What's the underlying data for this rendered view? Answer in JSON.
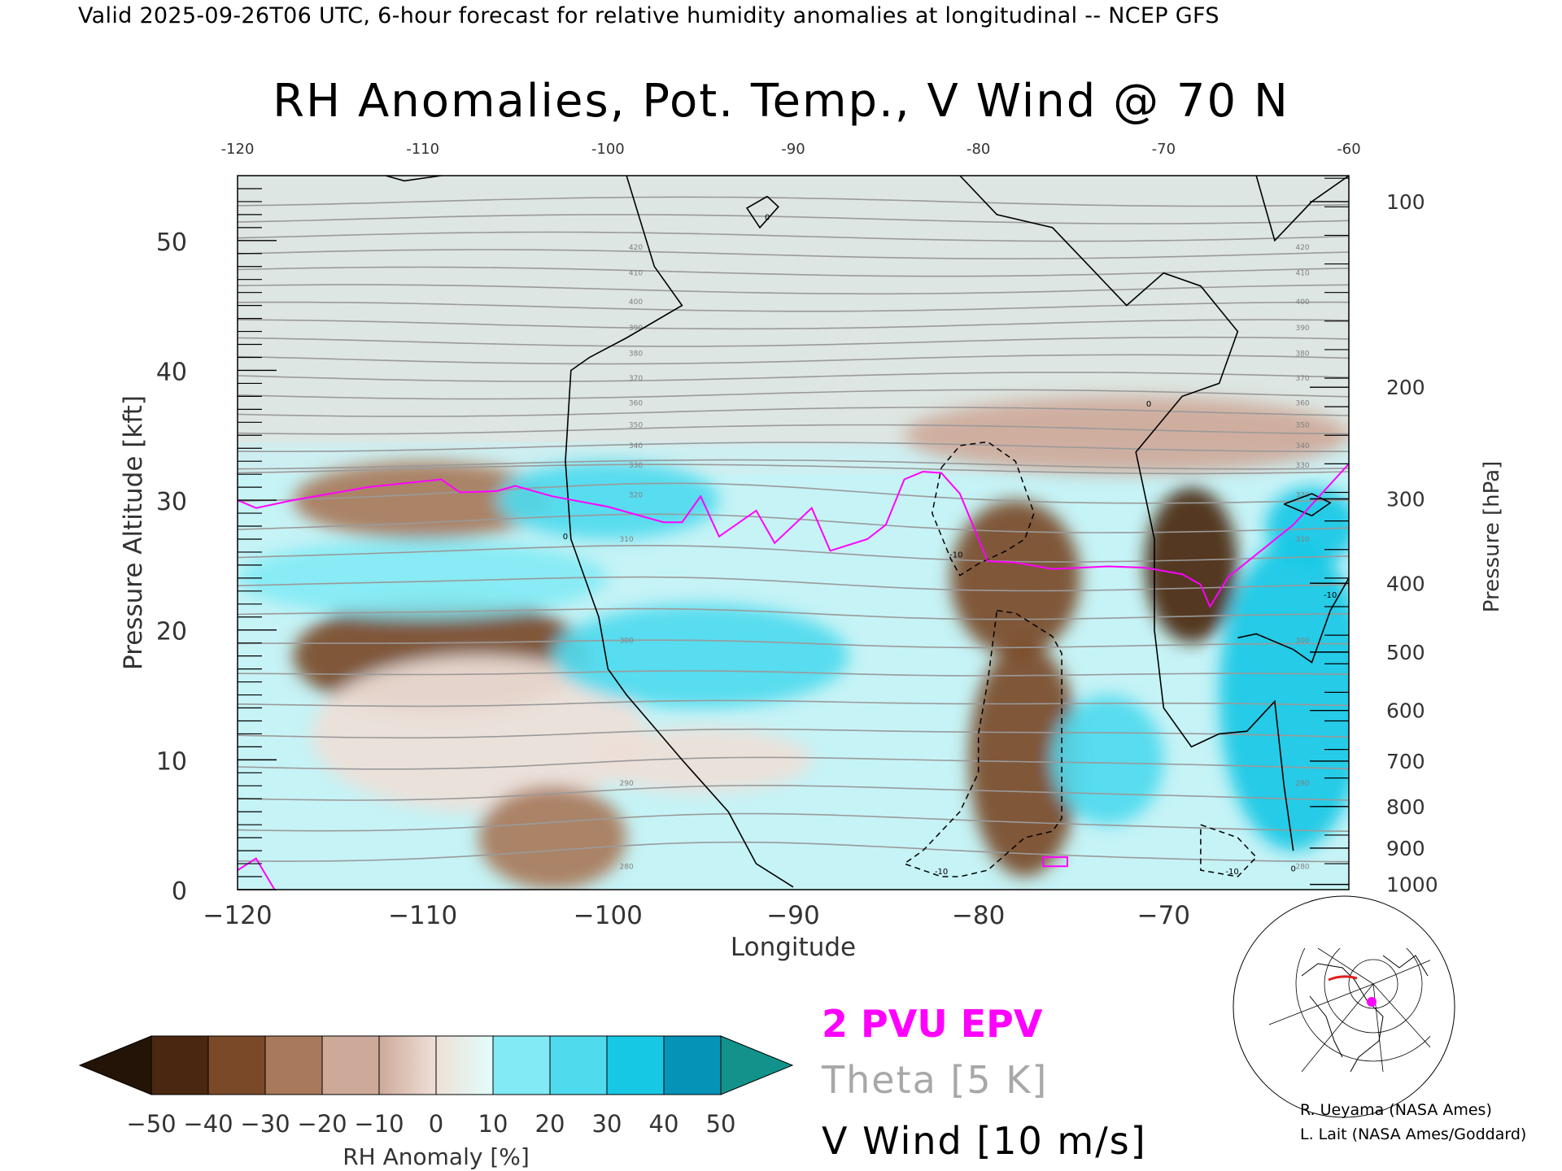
{
  "header": {
    "valid_line": "Valid 2025-09-26T06 UTC, 6-hour forecast for relative humidity anomalies at longitudinal -- NCEP GFS",
    "title": "RH Anomalies, Pot. Temp., V Wind @ 70 N"
  },
  "chart_data": {
    "type": "heatmap",
    "title": "RH Anomalies, Pot. Temp., V Wind @ 70 N",
    "xlabel": "Longitude",
    "ylabel": "Pressure Altitude [kft]",
    "y2label": "Pressure [hPa]",
    "xlim": [
      -120,
      -60
    ],
    "ylim": [
      0,
      55
    ],
    "x_ticks": [
      -120,
      -110,
      -100,
      -90,
      -80,
      -70,
      -60
    ],
    "y_ticks": [
      0,
      10,
      20,
      30,
      40,
      50
    ],
    "top_ticks": [
      "-120",
      "-110",
      "-100",
      "-90",
      "-80",
      "-70",
      "-60"
    ],
    "pressure_ticks": [
      {
        "label": "100",
        "kft": 53
      },
      {
        "label": "200",
        "kft": 38.7
      },
      {
        "label": "300",
        "kft": 30.1
      },
      {
        "label": "400",
        "kft": 23.6
      },
      {
        "label": "500",
        "kft": 18.3
      },
      {
        "label": "600",
        "kft": 13.8
      },
      {
        "label": "700",
        "kft": 9.9
      },
      {
        "label": "800",
        "kft": 6.4
      },
      {
        "label": "900",
        "kft": 3.2
      },
      {
        "label": "1000",
        "kft": 0.4
      }
    ],
    "theta_labels": [
      "420",
      "410",
      "400",
      "390",
      "380",
      "370",
      "360",
      "350",
      "340",
      "330",
      "320",
      "310",
      "300",
      "290",
      "280"
    ],
    "rh_anomaly_blobs": [
      {
        "lon": -110,
        "kft": 30,
        "value": -30,
        "rx": 7,
        "ry": 3
      },
      {
        "lon": -109,
        "kft": 18,
        "value": -40,
        "rx": 8,
        "ry": 4.5
      },
      {
        "lon": -107,
        "kft": 12,
        "value": -15,
        "rx": 9,
        "ry": 6
      },
      {
        "lon": -103,
        "kft": 4,
        "value": -30,
        "rx": 4,
        "ry": 4
      },
      {
        "lon": -95,
        "kft": 10,
        "value": -15,
        "rx": 6,
        "ry": 2.5
      },
      {
        "lon": -78,
        "kft": 24,
        "value": -45,
        "rx": 3.5,
        "ry": 6
      },
      {
        "lon": -77.5,
        "kft": 10,
        "value": -40,
        "rx": 3,
        "ry": 9
      },
      {
        "lon": -72,
        "kft": 35,
        "value": -20,
        "rx": 12,
        "ry": 3
      },
      {
        "lon": -68.5,
        "kft": 25,
        "value": -50,
        "rx": 2.5,
        "ry": 6
      },
      {
        "lon": -110,
        "kft": 24,
        "value": 20,
        "rx": 10,
        "ry": 3
      },
      {
        "lon": -95,
        "kft": 18,
        "value": 30,
        "rx": 8,
        "ry": 4
      },
      {
        "lon": -100,
        "kft": 30,
        "value": 30,
        "rx": 6,
        "ry": 3
      },
      {
        "lon": -63,
        "kft": 15,
        "value": 35,
        "rx": 4,
        "ry": 12
      },
      {
        "lon": -62,
        "kft": 28,
        "value": 40,
        "rx": 2.5,
        "ry": 3
      },
      {
        "lon": -73,
        "kft": 10,
        "value": 25,
        "rx": 3,
        "ry": 5
      }
    ],
    "pv_2pvu_line": [
      [
        -120,
        30
      ],
      [
        -119,
        29.4
      ],
      [
        -117,
        30
      ],
      [
        -113,
        31
      ],
      [
        -109,
        31.6
      ],
      [
        -108,
        30.6
      ],
      [
        -106,
        30.7
      ],
      [
        -105,
        31.1
      ],
      [
        -103,
        30.3
      ],
      [
        -100,
        29.5
      ],
      [
        -97,
        28.3
      ],
      [
        -96,
        28.3
      ],
      [
        -95,
        30.3
      ],
      [
        -94,
        27.2
      ],
      [
        -92,
        29.2
      ],
      [
        -91,
        26.7
      ],
      [
        -89,
        29.4
      ],
      [
        -88,
        26.1
      ],
      [
        -86,
        27
      ],
      [
        -85,
        28.1
      ],
      [
        -84,
        31.6
      ],
      [
        -83,
        32.2
      ],
      [
        -82,
        32.1
      ],
      [
        -81,
        30.5
      ],
      [
        -79.5,
        25.3
      ],
      [
        -78,
        25.2
      ],
      [
        -76,
        24.7
      ],
      [
        -73,
        24.9
      ],
      [
        -71,
        24.8
      ],
      [
        -69,
        24.3
      ],
      [
        -68,
        23.5
      ],
      [
        -67.5,
        21.8
      ],
      [
        -66.5,
        24.1
      ],
      [
        -63,
        28.1
      ],
      [
        -60,
        32.8
      ]
    ],
    "pv_small_loop": [
      [
        -120,
        1.5
      ],
      [
        -119,
        2.4
      ],
      [
        -118,
        0
      ]
    ],
    "vwind_zero_lines": [
      [
        [
          -99,
          55
        ],
        [
          -97.5,
          48
        ],
        [
          -96,
          45
        ],
        [
          -99,
          42.5
        ],
        [
          -101,
          41
        ],
        [
          -102,
          40
        ],
        [
          -102.3,
          33
        ],
        [
          -102,
          27
        ],
        [
          -100.5,
          21
        ],
        [
          -100,
          17
        ],
        [
          -99,
          15
        ],
        [
          -96,
          10
        ],
        [
          -93.5,
          6
        ],
        [
          -92,
          2
        ],
        [
          -90,
          0.2
        ]
      ],
      [
        [
          -81,
          55
        ],
        [
          -79,
          52
        ],
        [
          -76,
          51
        ],
        [
          -74,
          48
        ],
        [
          -72,
          45
        ],
        [
          -70,
          47.5
        ],
        [
          -68,
          46.5
        ],
        [
          -66,
          43
        ],
        [
          -67,
          39
        ],
        [
          -69,
          38
        ],
        [
          -71.5,
          33.7
        ],
        [
          -70.5,
          27
        ],
        [
          -70.5,
          20
        ],
        [
          -70,
          14
        ],
        [
          -68.5,
          11
        ],
        [
          -67,
          12
        ],
        [
          -65.5,
          12.2
        ],
        [
          -64,
          14.5
        ],
        [
          -63.5,
          8
        ],
        [
          -63,
          3
        ]
      ],
      [
        [
          -65,
          55
        ],
        [
          -64,
          50
        ],
        [
          -62,
          53
        ],
        [
          -60,
          55
        ]
      ],
      [
        [
          -63.5,
          29.7
        ],
        [
          -62,
          30.5
        ],
        [
          -61,
          29.8
        ],
        [
          -62,
          28.8
        ],
        [
          -63.5,
          29.7
        ]
      ],
      [
        [
          -60,
          24
        ],
        [
          -61,
          21.5
        ],
        [
          -62,
          17.5
        ],
        [
          -63,
          18.5
        ],
        [
          -65,
          19.7
        ],
        [
          -66,
          19.4
        ]
      ],
      [
        [
          -91.4,
          53.4
        ],
        [
          -92.5,
          52.5
        ],
        [
          -91.8,
          51
        ],
        [
          -90.8,
          52.6
        ],
        [
          -91.4,
          53.4
        ]
      ],
      [
        [
          -112,
          55
        ],
        [
          -111,
          54.6
        ],
        [
          -109,
          55
        ]
      ]
    ],
    "vwind_dashed_lines": [
      [
        [
          -82,
          32.5
        ],
        [
          -81,
          34.2
        ],
        [
          -79.5,
          34.5
        ],
        [
          -78,
          33
        ],
        [
          -77,
          29
        ],
        [
          -77.5,
          27
        ],
        [
          -78.5,
          26.1
        ],
        [
          -80,
          25.1
        ],
        [
          -81,
          24.2
        ],
        [
          -81.5,
          25.5
        ],
        [
          -82.5,
          29
        ],
        [
          -82,
          32.5
        ]
      ],
      [
        [
          -79,
          21.5
        ],
        [
          -78,
          21.3
        ],
        [
          -76,
          19.5
        ],
        [
          -75.5,
          18.2
        ],
        [
          -75.5,
          5.5
        ],
        [
          -76,
          4.5
        ],
        [
          -77.5,
          4
        ],
        [
          -79.5,
          1.5
        ],
        [
          -81,
          1
        ],
        [
          -82,
          1
        ],
        [
          -84,
          2
        ],
        [
          -83,
          3
        ],
        [
          -81,
          6
        ],
        [
          -80,
          9
        ],
        [
          -80,
          12
        ],
        [
          -79.5,
          16
        ],
        [
          -79,
          21.5
        ]
      ],
      [
        [
          -68,
          5
        ],
        [
          -66,
          4
        ],
        [
          -65,
          2.5
        ],
        [
          -66,
          1
        ],
        [
          -68,
          1.5
        ],
        [
          -68,
          5
        ]
      ]
    ],
    "colorbar": {
      "label": "RH Anomaly [%]",
      "ticks": [
        "-50",
        "-40",
        "-30",
        "-20",
        "-10",
        "0",
        "10",
        "20",
        "30",
        "40",
        "50"
      ],
      "colors": [
        "#241407",
        "#4a2710",
        "#7a4a28",
        "#a8795a",
        "#cda99a",
        "#eee0d8",
        "#e2fdfb",
        "#b2f5f9",
        "#82eaf4",
        "#4fdaee",
        "#17c8e5",
        "#0593b8",
        "#12928a"
      ],
      "units": "%"
    },
    "legend": [
      "2 PVU EPV",
      "Theta [5 K]",
      "V Wind [10 m/s]"
    ],
    "legend_colors": [
      "#ff00ff",
      "#a8a8a8",
      "#000000"
    ],
    "contour_labels": [
      "0",
      "-10"
    ]
  },
  "credits": {
    "line1": "R. Ueyama (NASA Ames)",
    "line2": "L. Lait (NASA Ames/Goddard)"
  }
}
